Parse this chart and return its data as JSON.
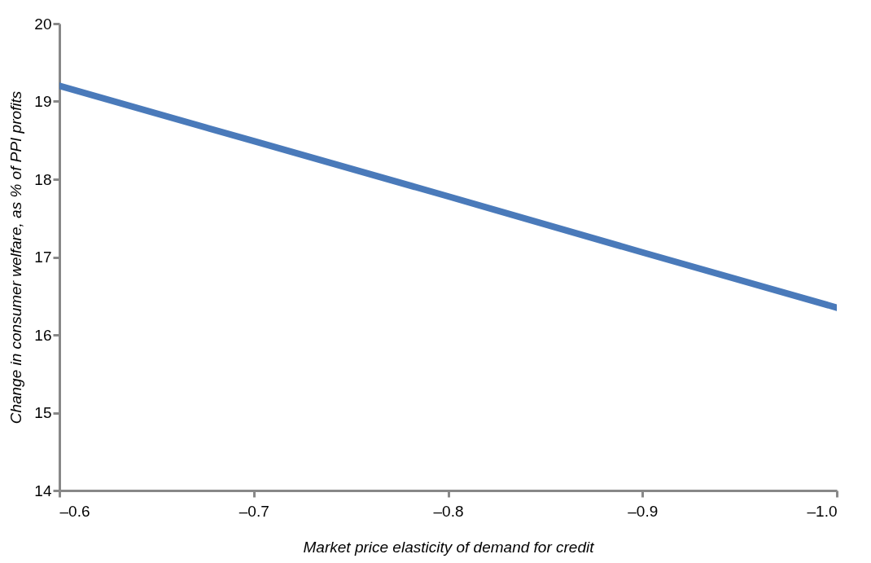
{
  "chart_data": {
    "type": "line",
    "xlabel": "Market price elasticity of demand for credit",
    "ylabel": "Change in consumer welfare, as % of PPI profits",
    "x": [
      -0.6,
      -0.7,
      -0.8,
      -0.9,
      -1.0
    ],
    "series": [
      {
        "color": "#4a7aba",
        "values": [
          19.2,
          18.49,
          17.78,
          17.06,
          16.35
        ]
      }
    ],
    "xlim": [
      -0.6,
      -1.0
    ],
    "xticks": [
      {
        "value": -0.6,
        "label": "–0.6"
      },
      {
        "value": -0.7,
        "label": "–0.7"
      },
      {
        "value": -0.8,
        "label": "–0.8"
      },
      {
        "value": -0.9,
        "label": "–0.9"
      },
      {
        "value": -1.0,
        "label": "–1.0"
      }
    ],
    "ylim": [
      14,
      20
    ],
    "yticks": [
      14,
      15,
      16,
      17,
      18,
      19,
      20
    ],
    "grid": false,
    "marker": "none",
    "line_style": "solid"
  }
}
